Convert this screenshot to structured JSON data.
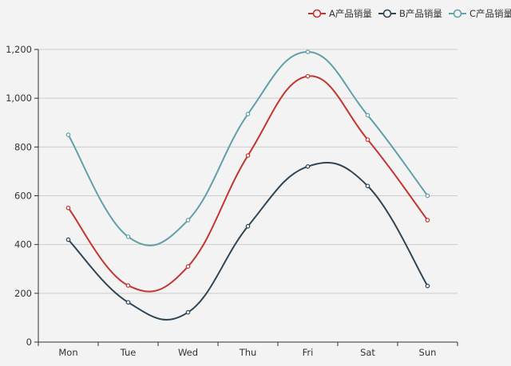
{
  "chart_data": {
    "type": "line",
    "smooth": true,
    "categories": [
      "Mon",
      "Tue",
      "Wed",
      "Thu",
      "Fri",
      "Sat",
      "Sun"
    ],
    "series": [
      {
        "name": "A产品销量",
        "color": "#c23531",
        "values": [
          550,
          232,
          310,
          765,
          1090,
          830,
          500
        ]
      },
      {
        "name": "B产品销量",
        "color": "#2f4554",
        "values": [
          420,
          163,
          122,
          475,
          720,
          640,
          230
        ]
      },
      {
        "name": "C产品销量",
        "color": "#61a0a8",
        "values": [
          850,
          432,
          500,
          935,
          1190,
          930,
          600
        ]
      }
    ],
    "ylim": [
      0,
      1200
    ],
    "yticks": [
      0,
      200,
      400,
      600,
      800,
      1000,
      1200
    ],
    "ytick_labels": [
      "0",
      "200",
      "400",
      "600",
      "800",
      "1,000",
      "1,200"
    ],
    "grid": true,
    "legend_position": "top-right",
    "title": "",
    "xlabel": "",
    "ylabel": ""
  },
  "colors": {
    "background": "#f3f3f3",
    "axis": "#333333",
    "grid": "#cccccc"
  }
}
